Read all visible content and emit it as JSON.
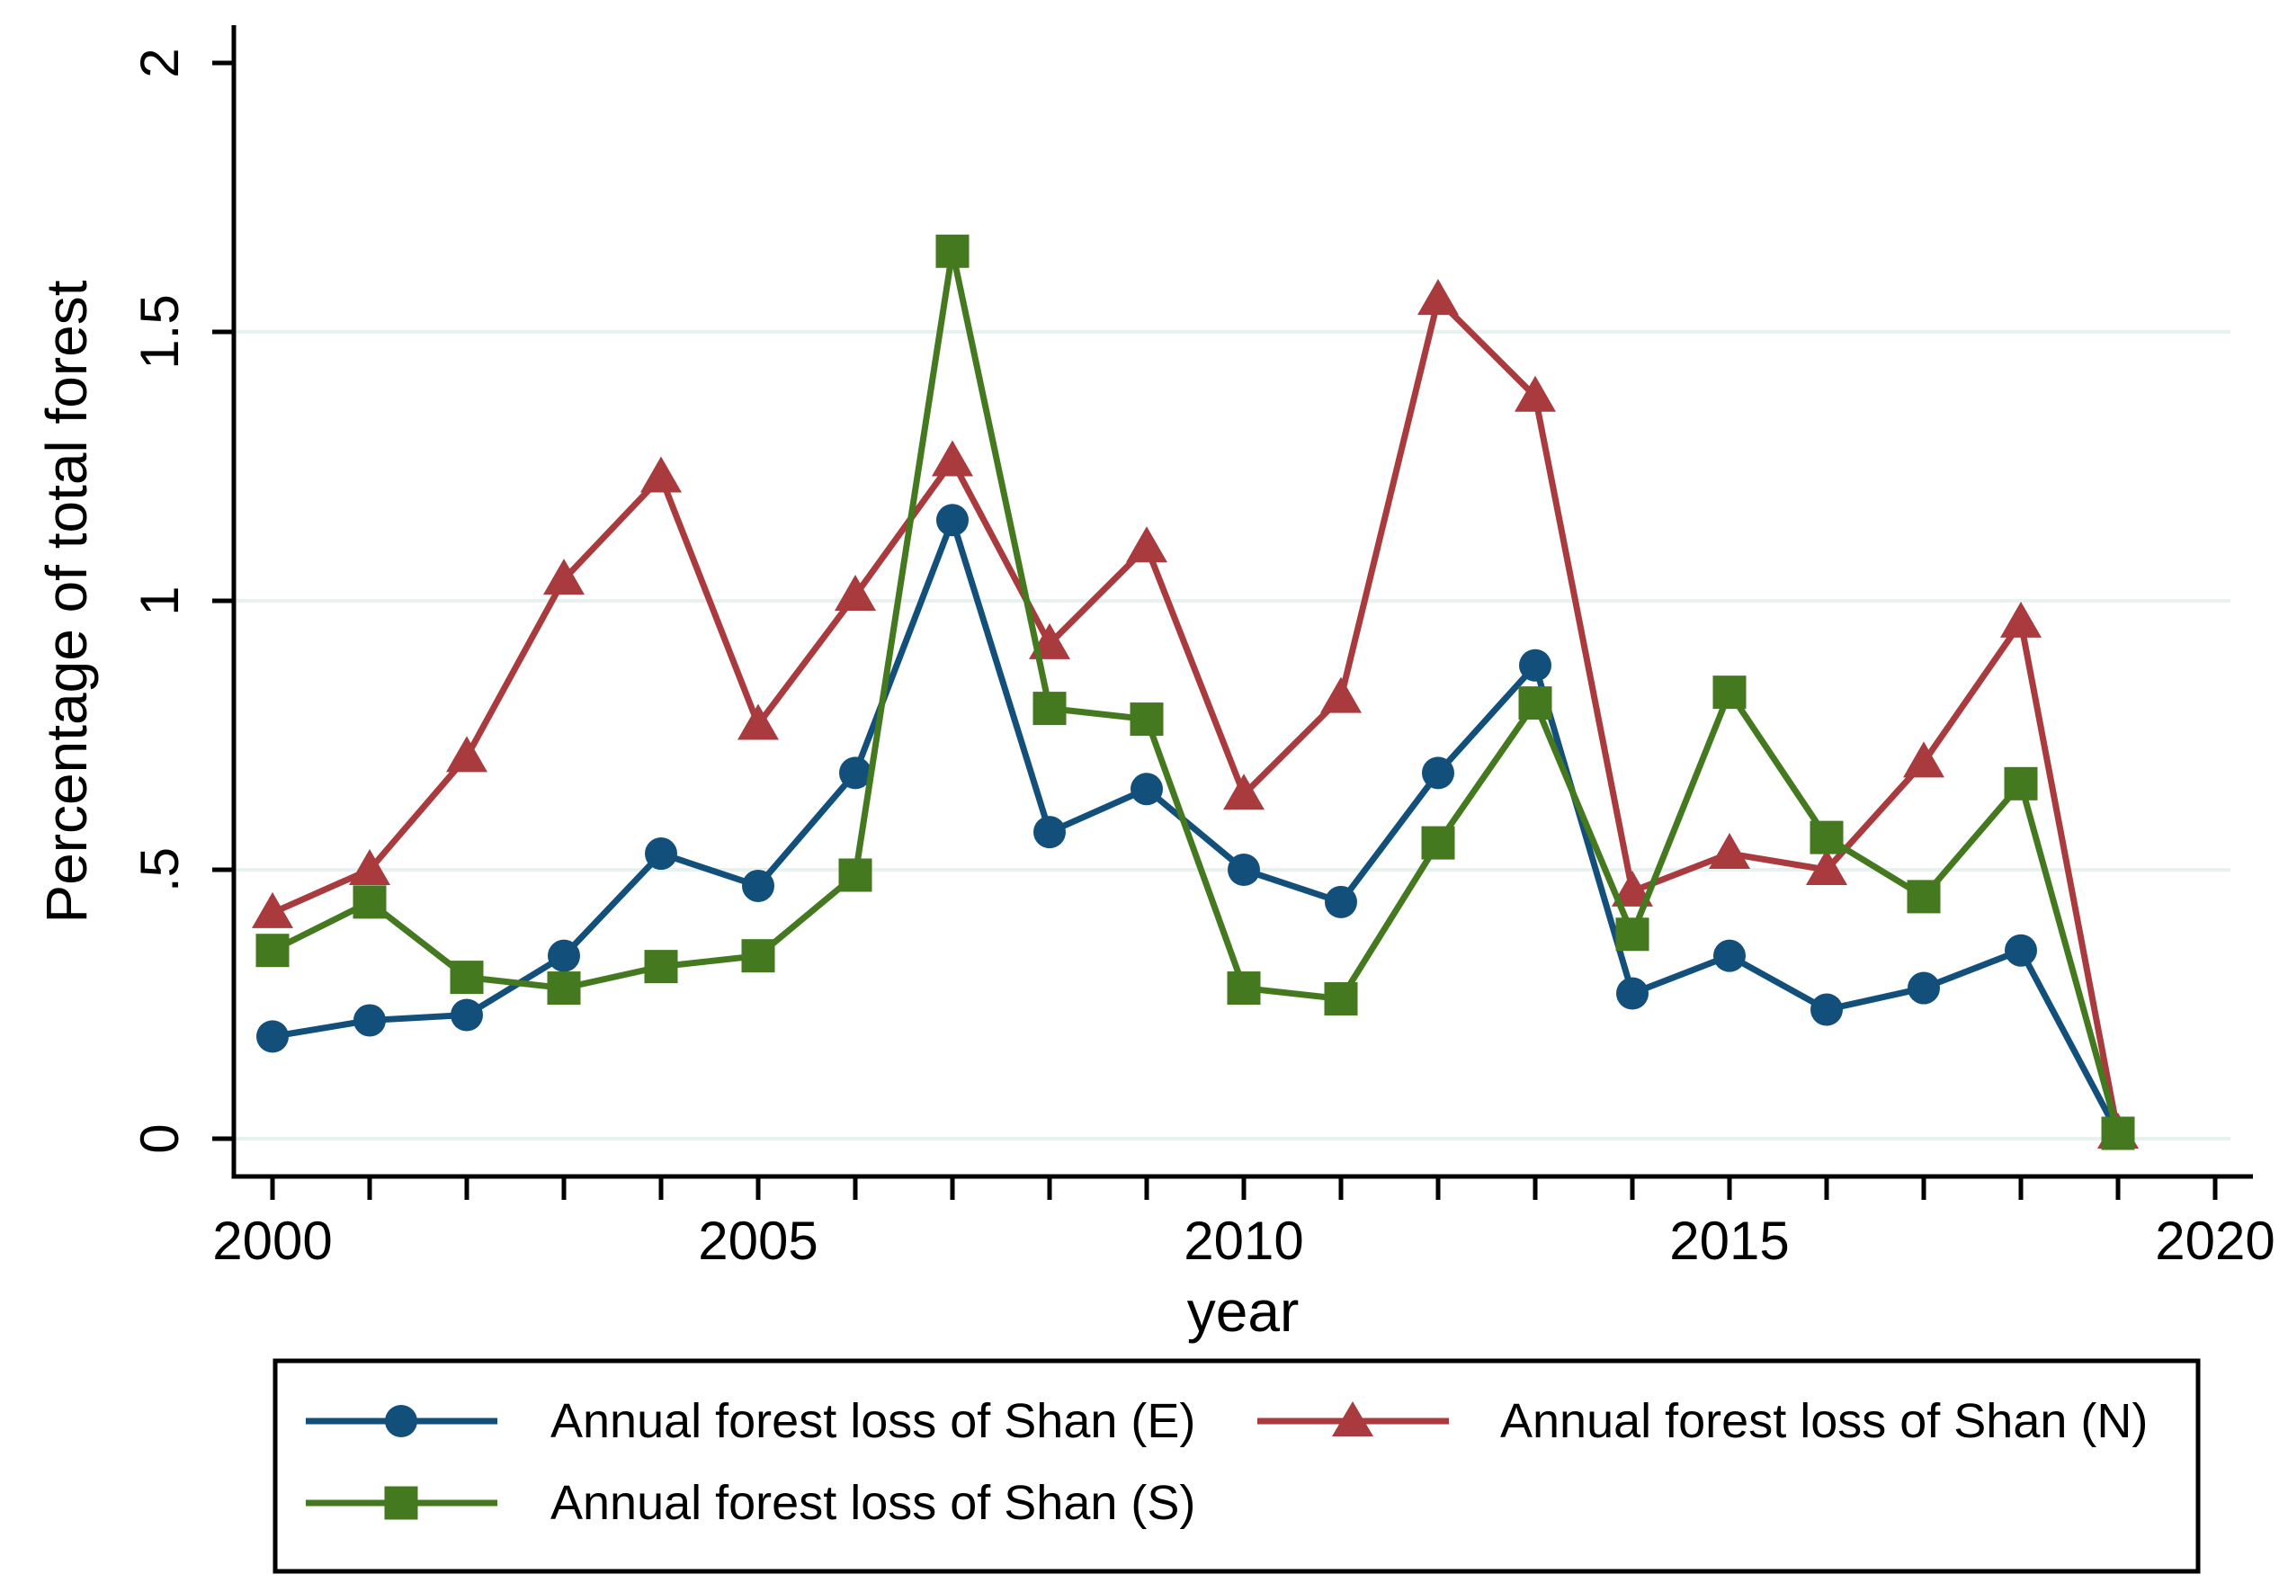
{
  "chart_data": {
    "type": "line",
    "title": "",
    "xlabel": "year",
    "ylabel": "Percentage of total forest",
    "xlim": [
      1999.6,
      2020.6
    ],
    "ylim": [
      0,
      2
    ],
    "grid": "on",
    "gridlines_at": [
      0,
      0.5,
      1,
      1.5
    ],
    "grid_color": "#e7f1f0",
    "axis_color": "#000000",
    "background_color": "#ffffff",
    "x": [
      2000,
      2001,
      2002,
      2003,
      2004,
      2005,
      2006,
      2007,
      2008,
      2009,
      2010,
      2011,
      2012,
      2013,
      2014,
      2015,
      2016,
      2017,
      2018,
      2019
    ],
    "x_ticks": {
      "minor_start": 2000,
      "minor_end": 2020,
      "minor_step": 1,
      "labeled": [
        2000,
        2005,
        2010,
        2015,
        2020
      ]
    },
    "y_ticks": [
      {
        "v": 0,
        "label": "0"
      },
      {
        "v": 0.5,
        "label": ".5"
      },
      {
        "v": 1,
        "label": "1"
      },
      {
        "v": 1.5,
        "label": "1.5"
      },
      {
        "v": 2,
        "label": "2"
      }
    ],
    "series": [
      {
        "name": "Annual forest loss of Shan (E)",
        "marker": "circle",
        "color": "#12507b",
        "values": [
          0.19,
          0.22,
          0.23,
          0.34,
          0.53,
          0.47,
          0.68,
          1.15,
          0.57,
          0.65,
          0.5,
          0.44,
          0.68,
          0.88,
          0.27,
          0.34,
          0.24,
          0.28,
          0.35,
          0.01
        ]
      },
      {
        "name": "Annual forest loss of Shan (N)",
        "marker": "triangle",
        "color": "#a93a3e",
        "values": [
          0.42,
          0.5,
          0.71,
          1.04,
          1.23,
          0.77,
          1.01,
          1.26,
          0.92,
          1.1,
          0.64,
          0.82,
          1.56,
          1.38,
          0.46,
          0.53,
          0.5,
          0.7,
          0.96,
          0.01
        ]
      },
      {
        "name": "Annual forest loss of Shan (S)",
        "marker": "square",
        "color": "#45791f",
        "values": [
          0.35,
          0.44,
          0.3,
          0.28,
          0.32,
          0.34,
          0.49,
          1.65,
          0.8,
          0.78,
          0.28,
          0.26,
          0.55,
          0.81,
          0.38,
          0.83,
          0.56,
          0.45,
          0.66,
          0.01
        ]
      }
    ],
    "legend": {
      "position": "bottom",
      "columns": 2,
      "entries": [
        "Annual forest loss of Shan (E)",
        "Annual forest loss of Shan (N)",
        "Annual forest loss of Shan (S)"
      ]
    }
  }
}
